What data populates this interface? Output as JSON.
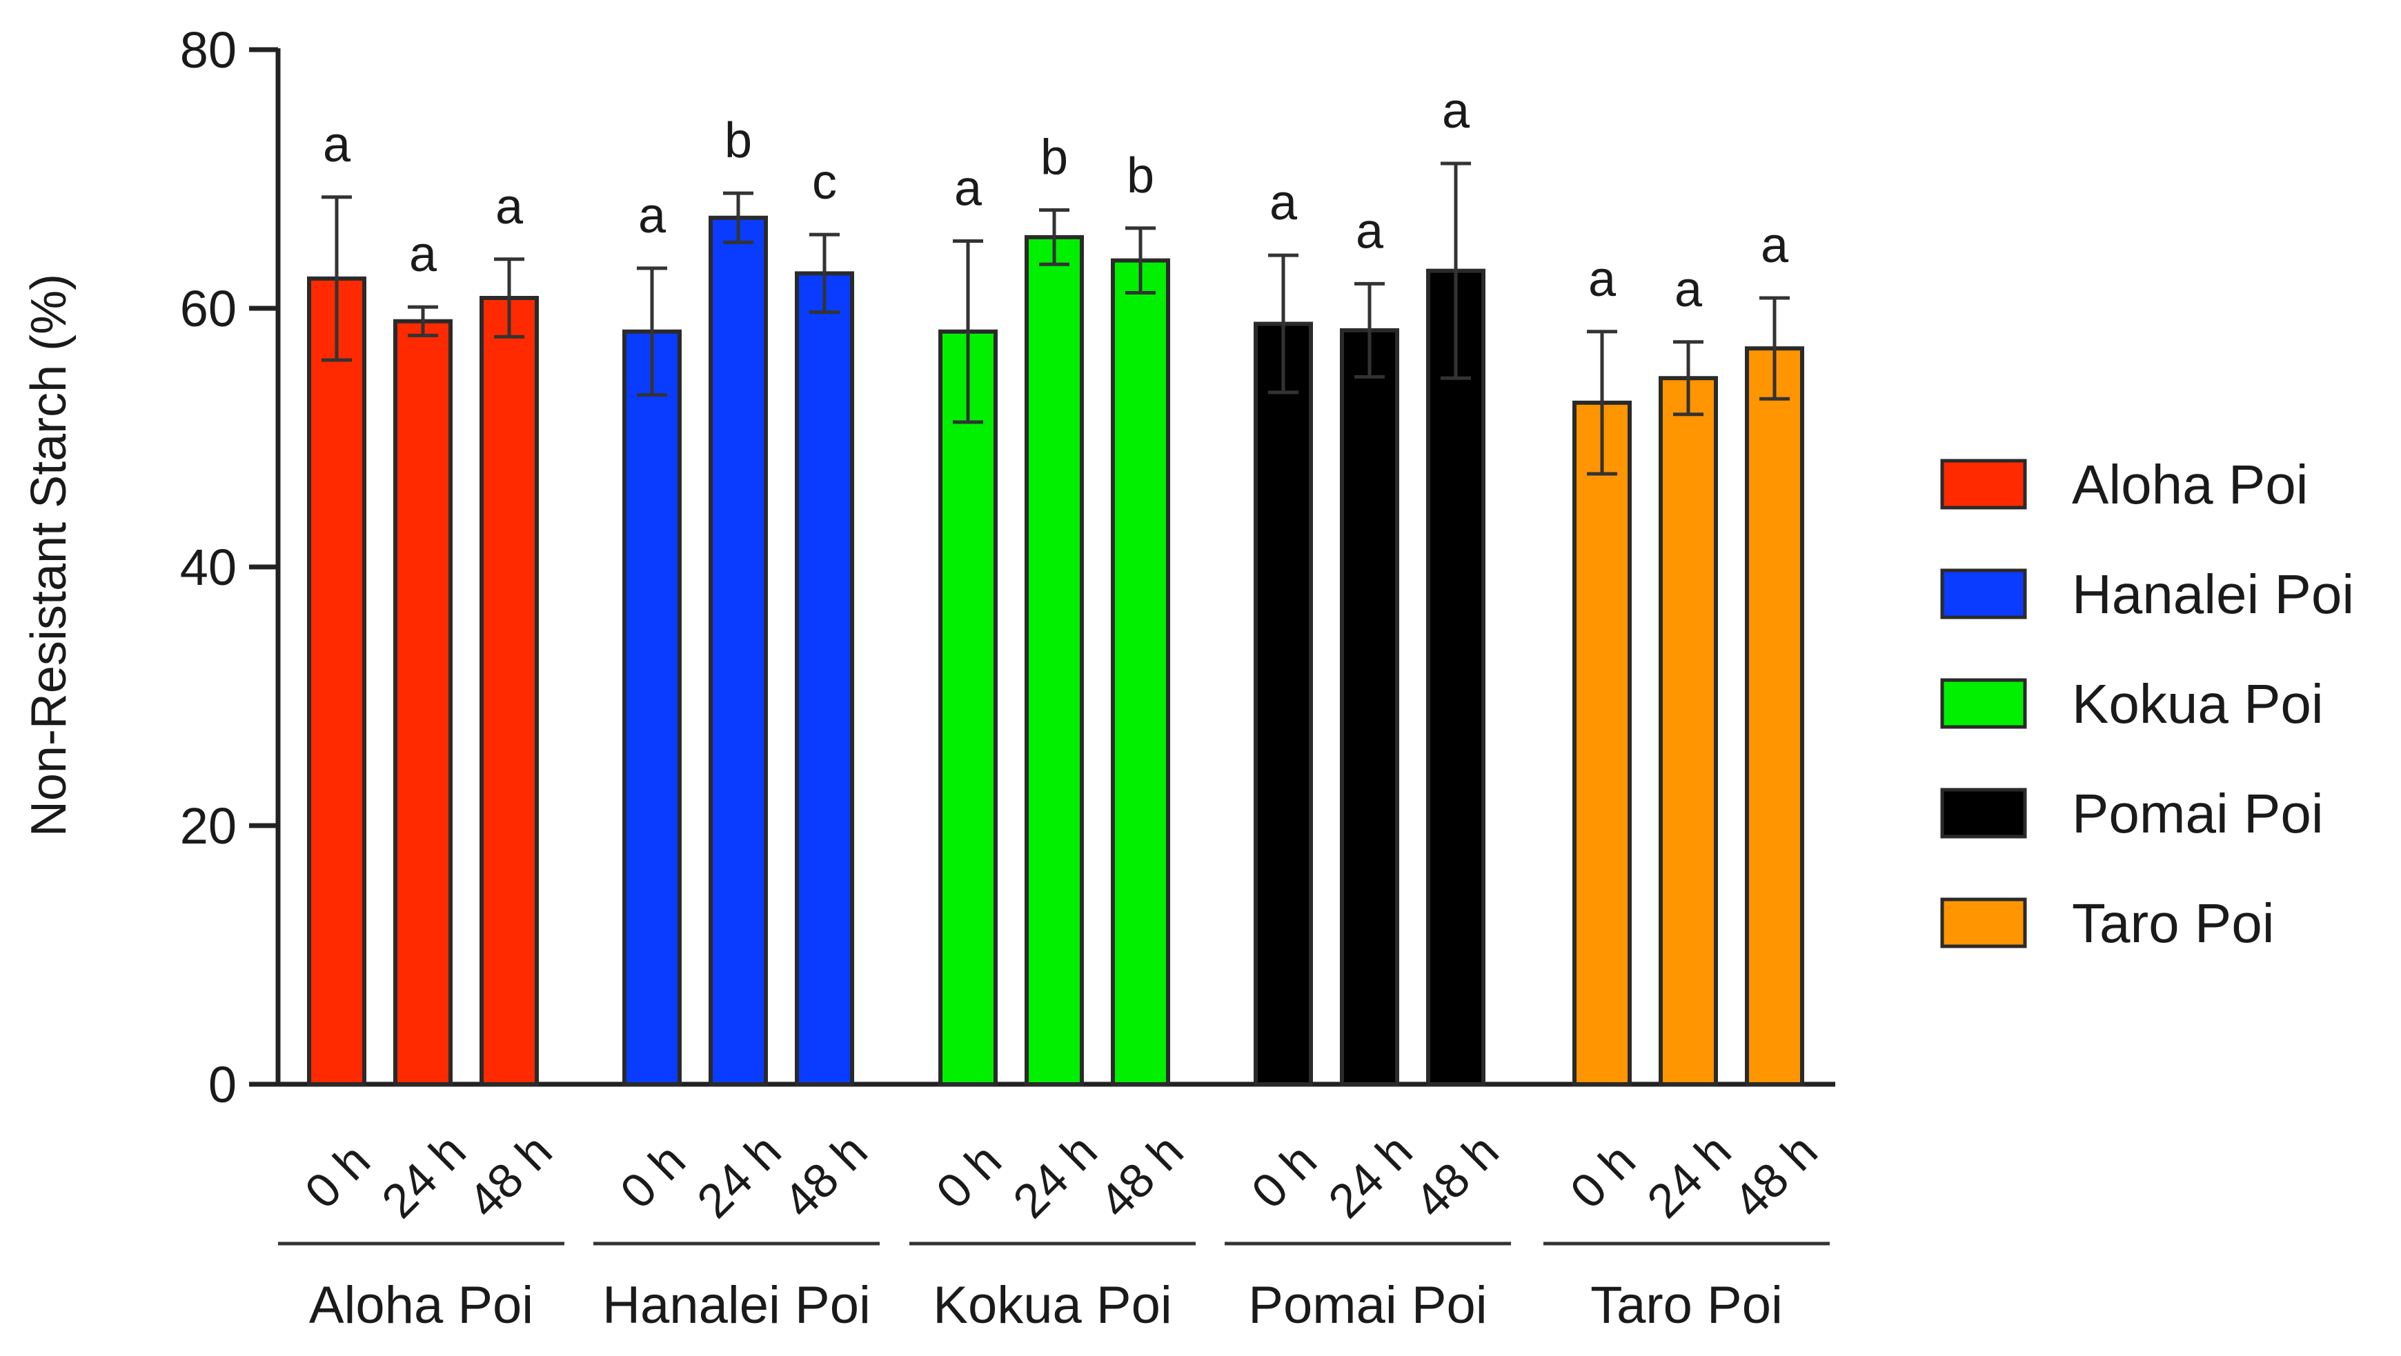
{
  "chart_data": {
    "type": "bar",
    "ylabel": "Non-Resistant Starch (%)",
    "ylim": [
      0,
      80
    ],
    "yticks": [
      0,
      20,
      40,
      60,
      80
    ],
    "timepoints": [
      "0 h",
      "24 h",
      "48 h"
    ],
    "groups": [
      {
        "name": "Aloha Poi",
        "color": "#ff2a00",
        "values": [
          62.3,
          59.0,
          60.8
        ],
        "errors": [
          6.3,
          1.1,
          3.0
        ],
        "letters": [
          "a",
          "a",
          "a"
        ]
      },
      {
        "name": "Hanalei Poi",
        "color": "#0a3cff",
        "values": [
          58.2,
          67.0,
          62.7
        ],
        "errors": [
          4.9,
          1.9,
          3.0
        ],
        "letters": [
          "a",
          "b",
          "c"
        ]
      },
      {
        "name": "Kokua Poi",
        "color": "#00f000",
        "values": [
          58.2,
          65.5,
          63.7
        ],
        "errors": [
          7.0,
          2.1,
          2.5
        ],
        "letters": [
          "a",
          "b",
          "b"
        ]
      },
      {
        "name": "Pomai Poi",
        "color": "#000000",
        "values": [
          58.8,
          58.3,
          62.9
        ],
        "errors": [
          5.3,
          3.6,
          8.3
        ],
        "letters": [
          "a",
          "a",
          "a"
        ]
      },
      {
        "name": "Taro Poi",
        "color": "#ff9500",
        "values": [
          52.7,
          54.6,
          56.9
        ],
        "errors": [
          5.5,
          2.8,
          3.9
        ],
        "letters": [
          "a",
          "a",
          "a"
        ]
      }
    ],
    "legend": {
      "position": "right",
      "entries": [
        "Aloha Poi",
        "Hanalei Poi",
        "Kokua Poi",
        "Pomai Poi",
        "Taro Poi"
      ]
    }
  }
}
